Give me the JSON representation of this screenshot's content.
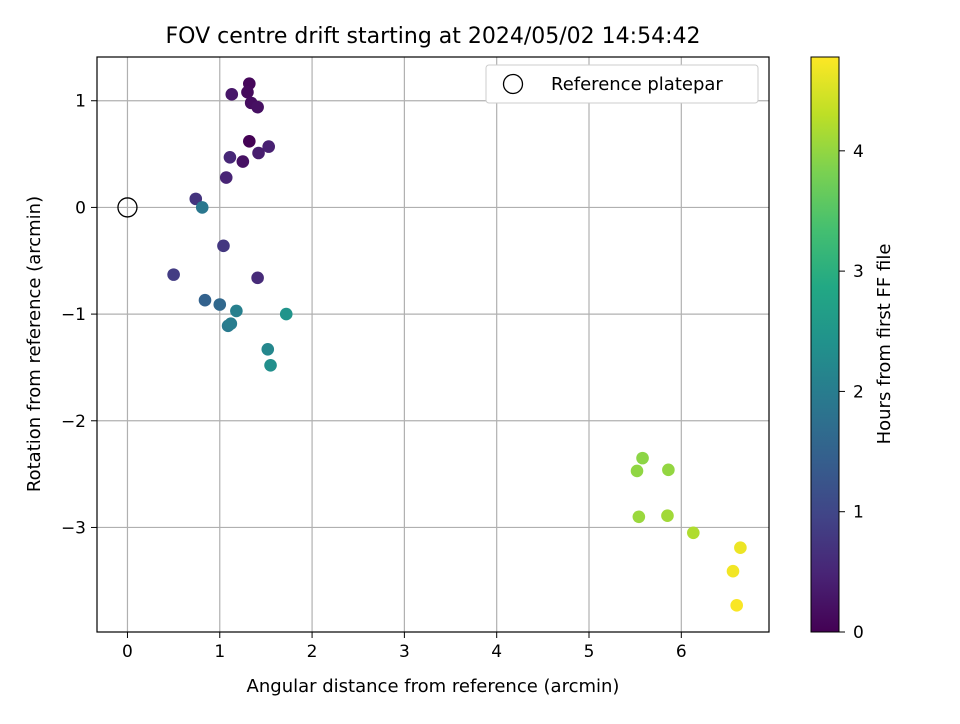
{
  "chart_data": {
    "type": "scatter",
    "title": "FOV centre drift starting at 2024/05/02 14:54:42",
    "xlabel": "Angular distance from reference (arcmin)",
    "ylabel": "Rotation from reference (arcmin)",
    "xlim": [
      -0.33,
      6.95
    ],
    "ylim": [
      -3.98,
      1.41
    ],
    "xticks": [
      0,
      1,
      2,
      3,
      4,
      5,
      6
    ],
    "yticks": [
      1,
      0,
      -1,
      -2,
      -3
    ],
    "xtick_labels": [
      "0",
      "1",
      "2",
      "3",
      "4",
      "5",
      "6"
    ],
    "ytick_labels": [
      "1",
      "0",
      "−1",
      "−2",
      "−3"
    ],
    "grid": true,
    "legend_position": "top-right",
    "reference": {
      "name": "Reference platepar",
      "x": 0,
      "y": 0
    },
    "colorbar": {
      "label": "Hours from first FF file",
      "colormap": "viridis",
      "range": [
        0,
        4.78
      ],
      "ticks": [
        0,
        1,
        2,
        3,
        4
      ],
      "tick_labels": [
        "0",
        "1",
        "2",
        "3",
        "4"
      ]
    },
    "points": [
      {
        "x": 1.32,
        "y": 0.62,
        "c": 0.02
      },
      {
        "x": 1.32,
        "y": 1.16,
        "c": 0.08
      },
      {
        "x": 1.3,
        "y": 1.08,
        "c": 0.12
      },
      {
        "x": 1.34,
        "y": 0.98,
        "c": 0.16
      },
      {
        "x": 1.41,
        "y": 0.94,
        "c": 0.2
      },
      {
        "x": 1.25,
        "y": 0.43,
        "c": 0.22
      },
      {
        "x": 1.13,
        "y": 1.06,
        "c": 0.3
      },
      {
        "x": 1.42,
        "y": 0.51,
        "c": 0.38
      },
      {
        "x": 1.53,
        "y": 0.57,
        "c": 0.44
      },
      {
        "x": 1.07,
        "y": 0.28,
        "c": 0.48
      },
      {
        "x": 1.11,
        "y": 0.47,
        "c": 0.52
      },
      {
        "x": 1.41,
        "y": -0.66,
        "c": 0.58
      },
      {
        "x": 0.74,
        "y": 0.08,
        "c": 0.72
      },
      {
        "x": 1.04,
        "y": -0.36,
        "c": 0.76
      },
      {
        "x": 0.5,
        "y": -0.63,
        "c": 0.84
      },
      {
        "x": 0.84,
        "y": -0.87,
        "c": 1.5
      },
      {
        "x": 1.0,
        "y": -0.91,
        "c": 1.6
      },
      {
        "x": 0.81,
        "y": 0.0,
        "c": 1.9
      },
      {
        "x": 1.09,
        "y": -1.11,
        "c": 1.95
      },
      {
        "x": 1.12,
        "y": -1.09,
        "c": 2.0
      },
      {
        "x": 1.18,
        "y": -0.97,
        "c": 2.05
      },
      {
        "x": 1.52,
        "y": -1.33,
        "c": 2.2
      },
      {
        "x": 1.55,
        "y": -1.48,
        "c": 2.35
      },
      {
        "x": 1.72,
        "y": -1.0,
        "c": 2.45
      },
      {
        "x": 5.58,
        "y": -2.35,
        "c": 3.95
      },
      {
        "x": 5.52,
        "y": -2.47,
        "c": 3.98
      },
      {
        "x": 5.86,
        "y": -2.46,
        "c": 4.0
      },
      {
        "x": 5.54,
        "y": -2.9,
        "c": 4.05
      },
      {
        "x": 5.85,
        "y": -2.89,
        "c": 4.1
      },
      {
        "x": 6.13,
        "y": -3.05,
        "c": 4.2
      },
      {
        "x": 6.64,
        "y": -3.19,
        "c": 4.65
      },
      {
        "x": 6.56,
        "y": -3.41,
        "c": 4.7
      },
      {
        "x": 6.6,
        "y": -3.73,
        "c": 4.75
      }
    ]
  }
}
